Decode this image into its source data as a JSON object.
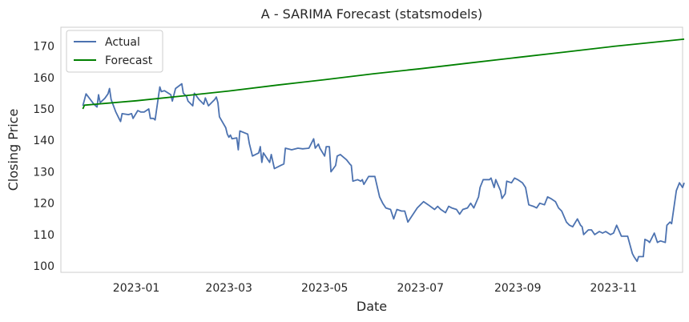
{
  "chart_data": {
    "type": "line",
    "title": "A - SARIMA Forecast (statsmodels)",
    "xlabel": "Date",
    "ylabel": "Closing Price",
    "xlim": [
      "2022-11-14",
      "2023-12-15"
    ],
    "ylim": [
      98,
      176
    ],
    "x_ticks": [
      {
        "date": "2023-01-01",
        "label": "2023-01"
      },
      {
        "date": "2023-03-01",
        "label": "2023-03"
      },
      {
        "date": "2023-05-01",
        "label": "2023-05"
      },
      {
        "date": "2023-07-01",
        "label": "2023-07"
      },
      {
        "date": "2023-09-01",
        "label": "2023-09"
      },
      {
        "date": "2023-11-01",
        "label": "2023-11"
      }
    ],
    "y_ticks": [
      100,
      110,
      120,
      130,
      140,
      150,
      160,
      170
    ],
    "grid": false,
    "legend": "top-left",
    "series": [
      {
        "name": "Actual",
        "color": "#4c72b0",
        "points": [
          [
            "2022-11-28",
            151
          ],
          [
            "2022-11-30",
            154.8
          ],
          [
            "2022-12-02",
            153.5
          ],
          [
            "2022-12-05",
            151.5
          ],
          [
            "2022-12-07",
            150.6
          ],
          [
            "2022-12-08",
            154.5
          ],
          [
            "2022-12-09",
            152
          ],
          [
            "2022-12-12",
            153.4
          ],
          [
            "2022-12-14",
            154.8
          ],
          [
            "2022-12-15",
            156.5
          ],
          [
            "2022-12-16",
            153
          ],
          [
            "2022-12-19",
            149
          ],
          [
            "2022-12-21",
            147
          ],
          [
            "2022-12-22",
            146
          ],
          [
            "2022-12-23",
            148.5
          ],
          [
            "2022-12-27",
            148.2
          ],
          [
            "2022-12-29",
            148.5
          ],
          [
            "2022-12-30",
            147
          ],
          [
            "2023-01-02",
            149.5
          ],
          [
            "2023-01-04",
            149
          ],
          [
            "2023-01-06",
            149
          ],
          [
            "2023-01-09",
            150
          ],
          [
            "2023-01-10",
            147
          ],
          [
            "2023-01-12",
            147
          ],
          [
            "2023-01-13",
            146.5
          ],
          [
            "2023-01-16",
            157
          ],
          [
            "2023-01-17",
            155.5
          ],
          [
            "2023-01-19",
            155.8
          ],
          [
            "2023-01-23",
            154.5
          ],
          [
            "2023-01-24",
            152.5
          ],
          [
            "2023-01-26",
            156.5
          ],
          [
            "2023-01-30",
            158
          ],
          [
            "2023-01-31",
            155
          ],
          [
            "2023-02-02",
            154
          ],
          [
            "2023-02-03",
            152.5
          ],
          [
            "2023-02-06",
            151
          ],
          [
            "2023-02-07",
            155
          ],
          [
            "2023-02-10",
            153
          ],
          [
            "2023-02-13",
            151.5
          ],
          [
            "2023-02-14",
            153.5
          ],
          [
            "2023-02-16",
            151
          ],
          [
            "2023-02-20",
            153
          ],
          [
            "2023-02-21",
            153.8
          ],
          [
            "2023-02-22",
            152
          ],
          [
            "2023-02-23",
            147.5
          ],
          [
            "2023-02-27",
            144
          ],
          [
            "2023-02-28",
            142
          ],
          [
            "2023-03-01",
            141
          ],
          [
            "2023-03-02",
            141.7
          ],
          [
            "2023-03-03",
            140.5
          ],
          [
            "2023-03-06",
            140.8
          ],
          [
            "2023-03-07",
            137
          ],
          [
            "2023-03-08",
            143
          ],
          [
            "2023-03-13",
            142
          ],
          [
            "2023-03-14",
            139
          ],
          [
            "2023-03-16",
            135
          ],
          [
            "2023-03-20",
            136
          ],
          [
            "2023-03-21",
            138
          ],
          [
            "2023-03-22",
            133
          ],
          [
            "2023-03-23",
            136
          ],
          [
            "2023-03-27",
            133
          ],
          [
            "2023-03-28",
            135.5
          ],
          [
            "2023-03-30",
            131
          ],
          [
            "2023-04-03",
            132
          ],
          [
            "2023-04-05",
            132.5
          ],
          [
            "2023-04-06",
            137.5
          ],
          [
            "2023-04-10",
            137
          ],
          [
            "2023-04-14",
            137.5
          ],
          [
            "2023-04-17",
            137.3
          ],
          [
            "2023-04-21",
            137.5
          ],
          [
            "2023-04-24",
            140.5
          ],
          [
            "2023-04-25",
            137.5
          ],
          [
            "2023-04-27",
            138.8
          ],
          [
            "2023-04-28",
            137.5
          ],
          [
            "2023-05-01",
            135
          ],
          [
            "2023-05-02",
            138
          ],
          [
            "2023-05-04",
            138
          ],
          [
            "2023-05-05",
            130
          ],
          [
            "2023-05-08",
            132
          ],
          [
            "2023-05-09",
            135
          ],
          [
            "2023-05-11",
            135.5
          ],
          [
            "2023-05-15",
            133.8
          ],
          [
            "2023-05-17",
            132.5
          ],
          [
            "2023-05-18",
            132
          ],
          [
            "2023-05-19",
            127
          ],
          [
            "2023-05-22",
            127.5
          ],
          [
            "2023-05-24",
            127
          ],
          [
            "2023-05-25",
            127.5
          ],
          [
            "2023-05-26",
            126
          ],
          [
            "2023-05-29",
            128.5
          ],
          [
            "2023-05-31",
            128.5
          ],
          [
            "2023-06-02",
            128.5
          ],
          [
            "2023-06-05",
            122
          ],
          [
            "2023-06-07",
            120
          ],
          [
            "2023-06-09",
            118.5
          ],
          [
            "2023-06-12",
            118
          ],
          [
            "2023-06-14",
            115
          ],
          [
            "2023-06-16",
            118
          ],
          [
            "2023-06-19",
            117.5
          ],
          [
            "2023-06-21",
            117.5
          ],
          [
            "2023-06-23",
            114
          ],
          [
            "2023-06-27",
            117
          ],
          [
            "2023-06-29",
            118.5
          ],
          [
            "2023-07-03",
            120.5
          ],
          [
            "2023-07-06",
            119.5
          ],
          [
            "2023-07-10",
            118
          ],
          [
            "2023-07-12",
            119
          ],
          [
            "2023-07-14",
            118
          ],
          [
            "2023-07-17",
            117
          ],
          [
            "2023-07-19",
            119
          ],
          [
            "2023-07-21",
            118.5
          ],
          [
            "2023-07-24",
            118
          ],
          [
            "2023-07-26",
            116.5
          ],
          [
            "2023-07-28",
            118
          ],
          [
            "2023-07-31",
            118.5
          ],
          [
            "2023-08-02",
            120
          ],
          [
            "2023-08-04",
            118.5
          ],
          [
            "2023-08-07",
            122
          ],
          [
            "2023-08-08",
            125
          ],
          [
            "2023-08-10",
            127.5
          ],
          [
            "2023-08-14",
            127.5
          ],
          [
            "2023-08-15",
            128
          ],
          [
            "2023-08-17",
            125
          ],
          [
            "2023-08-18",
            127.5
          ],
          [
            "2023-08-21",
            124
          ],
          [
            "2023-08-22",
            121.5
          ],
          [
            "2023-08-24",
            123
          ],
          [
            "2023-08-25",
            127
          ],
          [
            "2023-08-28",
            126.5
          ],
          [
            "2023-08-30",
            128
          ],
          [
            "2023-09-01",
            127.5
          ],
          [
            "2023-09-04",
            126.5
          ],
          [
            "2023-09-06",
            125
          ],
          [
            "2023-09-08",
            119.5
          ],
          [
            "2023-09-11",
            119
          ],
          [
            "2023-09-13",
            118.5
          ],
          [
            "2023-09-15",
            120
          ],
          [
            "2023-09-18",
            119.5
          ],
          [
            "2023-09-20",
            122
          ],
          [
            "2023-09-22",
            121.5
          ],
          [
            "2023-09-25",
            120.5
          ],
          [
            "2023-09-27",
            118.5
          ],
          [
            "2023-09-29",
            117.5
          ],
          [
            "2023-10-02",
            114
          ],
          [
            "2023-10-04",
            113
          ],
          [
            "2023-10-06",
            112.5
          ],
          [
            "2023-10-09",
            115
          ],
          [
            "2023-10-11",
            113
          ],
          [
            "2023-10-12",
            112.5
          ],
          [
            "2023-10-13",
            110
          ],
          [
            "2023-10-16",
            111.5
          ],
          [
            "2023-10-18",
            111.5
          ],
          [
            "2023-10-20",
            110
          ],
          [
            "2023-10-23",
            111
          ],
          [
            "2023-10-25",
            110.5
          ],
          [
            "2023-10-27",
            111
          ],
          [
            "2023-10-30",
            110
          ],
          [
            "2023-11-01",
            110.5
          ],
          [
            "2023-11-03",
            113
          ],
          [
            "2023-11-06",
            109.5
          ],
          [
            "2023-11-08",
            109.5
          ],
          [
            "2023-11-10",
            109.5
          ],
          [
            "2023-11-13",
            104
          ],
          [
            "2023-11-14",
            103
          ],
          [
            "2023-11-16",
            101.5
          ],
          [
            "2023-11-17",
            103
          ],
          [
            "2023-11-20",
            103
          ],
          [
            "2023-11-21",
            108.5
          ],
          [
            "2023-11-23",
            108
          ],
          [
            "2023-11-24",
            107.5
          ],
          [
            "2023-11-27",
            110.5
          ],
          [
            "2023-11-29",
            107.5
          ],
          [
            "2023-11-30",
            107.8
          ],
          [
            "2023-12-01",
            108
          ],
          [
            "2023-12-04",
            107.5
          ],
          [
            "2023-12-05",
            113
          ],
          [
            "2023-12-07",
            114
          ],
          [
            "2023-12-08",
            113.5
          ],
          [
            "2023-12-11",
            124
          ],
          [
            "2023-12-13",
            126.5
          ],
          [
            "2023-12-15",
            125
          ],
          [
            "2023-12-16",
            126.5
          ]
        ]
      },
      {
        "name": "Forecast",
        "color": "#008000",
        "points": [
          [
            "2022-11-28",
            150
          ],
          [
            "2022-11-29",
            151.2
          ],
          [
            "2023-01-01",
            152.6
          ],
          [
            "2023-02-01",
            154.2
          ],
          [
            "2023-03-01",
            155.7
          ],
          [
            "2023-04-01",
            157.6
          ],
          [
            "2023-05-01",
            159.3
          ],
          [
            "2023-06-01",
            161.2
          ],
          [
            "2023-07-01",
            162.8
          ],
          [
            "2023-08-01",
            164.6
          ],
          [
            "2023-09-01",
            166.4
          ],
          [
            "2023-10-01",
            168.1
          ],
          [
            "2023-11-01",
            169.9
          ],
          [
            "2023-12-16",
            172.2
          ]
        ]
      }
    ]
  }
}
